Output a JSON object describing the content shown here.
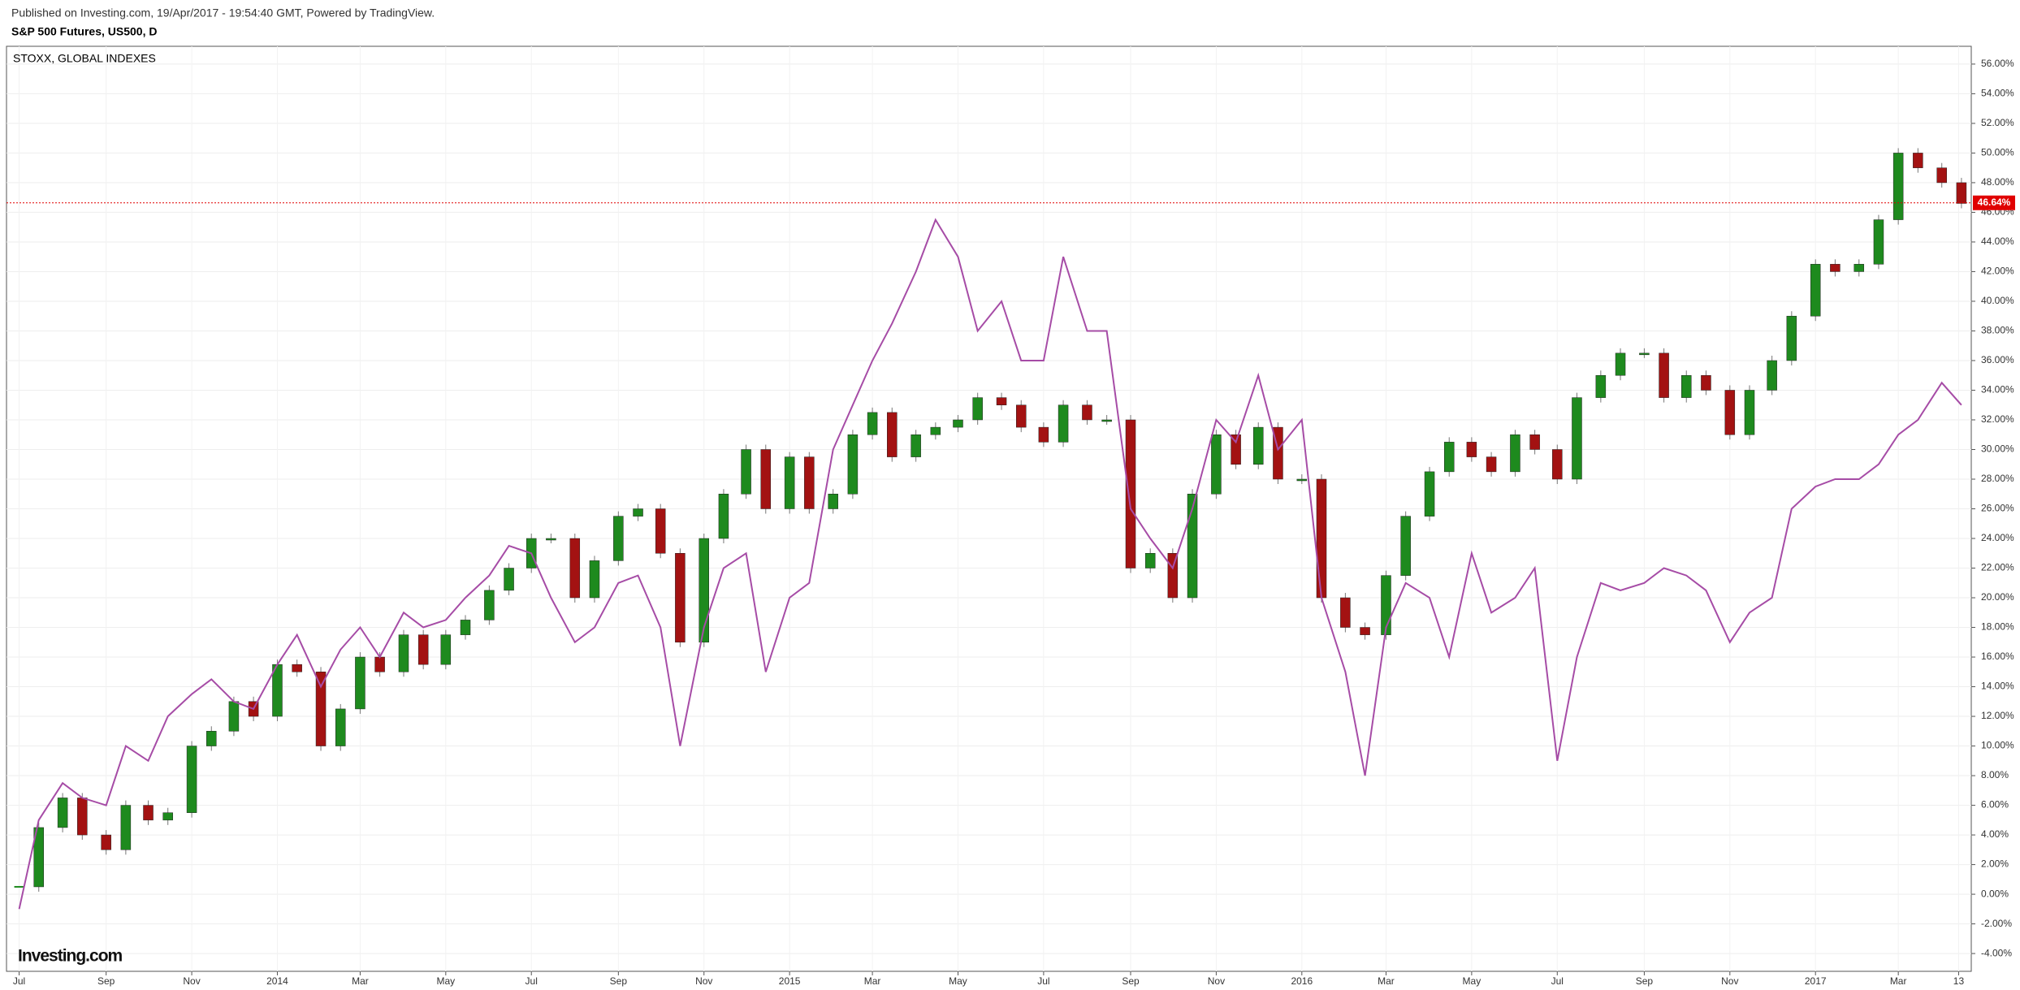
{
  "header": {
    "published": "Published on Investing.com, 19/Apr/2017 - 19:54:40 GMT, Powered by TradingView.",
    "symbol": "S&P 500 Futures, US500, D"
  },
  "logo": "Investing.com",
  "chart_data": {
    "type": "candle-compare",
    "legend": "STOXX, GLOBAL INDEXES",
    "xlim": [
      "2013-06-22",
      "2017-04-22"
    ],
    "xticks": [
      {
        "value": "2013-07-01",
        "label": "Jul"
      },
      {
        "value": "2013-09-01",
        "label": "Sep"
      },
      {
        "value": "2013-11-01",
        "label": "Nov"
      },
      {
        "value": "2014-01-01",
        "label": "2014"
      },
      {
        "value": "2014-03-01",
        "label": "Mar"
      },
      {
        "value": "2014-05-01",
        "label": "May"
      },
      {
        "value": "2014-07-01",
        "label": "Jul"
      },
      {
        "value": "2014-09-01",
        "label": "Sep"
      },
      {
        "value": "2014-11-01",
        "label": "Nov"
      },
      {
        "value": "2015-01-01",
        "label": "2015"
      },
      {
        "value": "2015-03-01",
        "label": "Mar"
      },
      {
        "value": "2015-05-01",
        "label": "May"
      },
      {
        "value": "2015-07-01",
        "label": "Jul"
      },
      {
        "value": "2015-09-01",
        "label": "Sep"
      },
      {
        "value": "2015-11-01",
        "label": "Nov"
      },
      {
        "value": "2016-01-01",
        "label": "2016"
      },
      {
        "value": "2016-03-01",
        "label": "Mar"
      },
      {
        "value": "2016-05-01",
        "label": "May"
      },
      {
        "value": "2016-07-01",
        "label": "Jul"
      },
      {
        "value": "2016-09-01",
        "label": "Sep"
      },
      {
        "value": "2016-11-01",
        "label": "Nov"
      },
      {
        "value": "2017-01-01",
        "label": "2017"
      },
      {
        "value": "2017-03-01",
        "label": "Mar"
      },
      {
        "value": "2017-04-13",
        "label": "13"
      }
    ],
    "ylim": [
      -5.2,
      57.2
    ],
    "yticks": [
      {
        "value": -4,
        "label": "-4.00%"
      },
      {
        "value": -2,
        "label": "-2.00%"
      },
      {
        "value": 0,
        "label": "0.00%"
      },
      {
        "value": 2,
        "label": "2.00%"
      },
      {
        "value": 4,
        "label": "4.00%"
      },
      {
        "value": 6,
        "label": "6.00%"
      },
      {
        "value": 8,
        "label": "8.00%"
      },
      {
        "value": 10,
        "label": "10.00%"
      },
      {
        "value": 12,
        "label": "12.00%"
      },
      {
        "value": 14,
        "label": "14.00%"
      },
      {
        "value": 16,
        "label": "16.00%"
      },
      {
        "value": 18,
        "label": "18.00%"
      },
      {
        "value": 20,
        "label": "20.00%"
      },
      {
        "value": 22,
        "label": "22.00%"
      },
      {
        "value": 24,
        "label": "24.00%"
      },
      {
        "value": 26,
        "label": "26.00%"
      },
      {
        "value": 28,
        "label": "28.00%"
      },
      {
        "value": 30,
        "label": "30.00%"
      },
      {
        "value": 32,
        "label": "32.00%"
      },
      {
        "value": 34,
        "label": "34.00%"
      },
      {
        "value": 36,
        "label": "36.00%"
      },
      {
        "value": 38,
        "label": "38.00%"
      },
      {
        "value": 40,
        "label": "40.00%"
      },
      {
        "value": 42,
        "label": "42.00%"
      },
      {
        "value": 44,
        "label": "44.00%"
      },
      {
        "value": 46,
        "label": "46.00%"
      },
      {
        "value": 48,
        "label": "48.00%"
      },
      {
        "value": 50,
        "label": "50.00%"
      },
      {
        "value": 52,
        "label": "52.00%"
      },
      {
        "value": 54,
        "label": "54.00%"
      },
      {
        "value": 56,
        "label": "56.00%"
      }
    ],
    "grid": true,
    "current": {
      "value": 46.64,
      "label": "46.64%",
      "color": "#e00000"
    },
    "x": [
      "2013-07-01",
      "2013-07-15",
      "2013-08-01",
      "2013-08-15",
      "2013-09-01",
      "2013-09-15",
      "2013-10-01",
      "2013-10-15",
      "2013-11-01",
      "2013-11-15",
      "2013-12-01",
      "2013-12-15",
      "2014-01-01",
      "2014-01-15",
      "2014-02-01",
      "2014-02-15",
      "2014-03-01",
      "2014-03-15",
      "2014-04-01",
      "2014-04-15",
      "2014-05-01",
      "2014-05-15",
      "2014-06-01",
      "2014-06-15",
      "2014-07-01",
      "2014-07-15",
      "2014-08-01",
      "2014-08-15",
      "2014-09-01",
      "2014-09-15",
      "2014-10-01",
      "2014-10-15",
      "2014-11-01",
      "2014-11-15",
      "2014-12-01",
      "2014-12-15",
      "2015-01-01",
      "2015-01-15",
      "2015-02-01",
      "2015-02-15",
      "2015-03-01",
      "2015-03-15",
      "2015-04-01",
      "2015-04-15",
      "2015-05-01",
      "2015-05-15",
      "2015-06-01",
      "2015-06-15",
      "2015-07-01",
      "2015-07-15",
      "2015-08-01",
      "2015-08-15",
      "2015-09-01",
      "2015-09-15",
      "2015-10-01",
      "2015-10-15",
      "2015-11-01",
      "2015-11-15",
      "2015-12-01",
      "2015-12-15",
      "2016-01-01",
      "2016-01-15",
      "2016-02-01",
      "2016-02-15",
      "2016-03-01",
      "2016-03-15",
      "2016-04-01",
      "2016-04-15",
      "2016-05-01",
      "2016-05-15",
      "2016-06-01",
      "2016-06-15",
      "2016-07-01",
      "2016-07-15",
      "2016-08-01",
      "2016-08-15",
      "2016-09-01",
      "2016-09-15",
      "2016-10-01",
      "2016-10-15",
      "2016-11-01",
      "2016-11-15",
      "2016-12-01",
      "2016-12-15",
      "2017-01-01",
      "2017-01-15",
      "2017-02-01",
      "2017-02-15",
      "2017-03-01",
      "2017-03-15",
      "2017-04-01",
      "2017-04-15"
    ],
    "series": [
      {
        "style": "candle",
        "up_color": "#1e8a1e",
        "down_color": "#a31212",
        "values": [
          0.5,
          4.5,
          6.5,
          4,
          3,
          6,
          5,
          5.5,
          10,
          11,
          13,
          12,
          15.5,
          15,
          10,
          12.5,
          16,
          15,
          17.5,
          15.5,
          17.5,
          18.5,
          20.5,
          22,
          24,
          24,
          20,
          22.5,
          25.5,
          26,
          23,
          17,
          24,
          27,
          30,
          26,
          29.5,
          26,
          27,
          31,
          32.5,
          29.5,
          31,
          31.5,
          32,
          33.5,
          33,
          31.5,
          30.5,
          33,
          32,
          32,
          22,
          23,
          20,
          27,
          31,
          29,
          31.5,
          28,
          28,
          20,
          18,
          17.5,
          21.5,
          25.5,
          28.5,
          30.5,
          29.5,
          28.5,
          31,
          30,
          28,
          33.5,
          35,
          36.5,
          36.5,
          33.5,
          35,
          34,
          31,
          34,
          36,
          39,
          42.5,
          42,
          42.5,
          45.5,
          50,
          49,
          48,
          46.6
        ]
      },
      {
        "style": "line",
        "name": "STOXX, GLOBAL INDEXES",
        "color": "#a64ca6",
        "values": [
          -1,
          5,
          7.5,
          6.5,
          6,
          10,
          9,
          12,
          13.5,
          14.5,
          13,
          12.5,
          15.5,
          17.5,
          14,
          16.5,
          18,
          16,
          19,
          18,
          18.5,
          20,
          21.5,
          23.5,
          23,
          20,
          17,
          18,
          21,
          21.5,
          18,
          10,
          18,
          22,
          23,
          15,
          20,
          21,
          30,
          33,
          36,
          38.5,
          42,
          45.5,
          43,
          38,
          40,
          36,
          36,
          43,
          38,
          38,
          26,
          24,
          22,
          26,
          32,
          30.5,
          35,
          30,
          32,
          20,
          15,
          8,
          18,
          21,
          20,
          16,
          23,
          19,
          20,
          22,
          9,
          16,
          21,
          20.5,
          21,
          22,
          21.5,
          20.5,
          17,
          19,
          20,
          26,
          27.5,
          28,
          28,
          29,
          31,
          32,
          34.5,
          33
        ]
      }
    ]
  }
}
